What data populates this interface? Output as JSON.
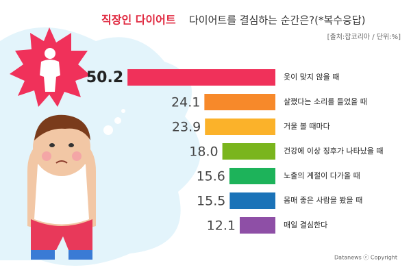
{
  "chart_data": {
    "type": "bar",
    "title_prefix": "직장인 다이어트",
    "title": "다이어트를 결심하는 순간은?(*복수응답)",
    "subtitle": "[출처:잡코리아 / 단위:%]",
    "footer": "Datanews ⓒ Copyright",
    "categories": [
      "옷이 맞지 않을 때",
      "살쪘다는 소리를 들었을 때",
      "거울 볼 때마다",
      "건강에 이상 징후가 나타났을 때",
      "노출의 계절이 다가올 때",
      "몸매 좋은 사람을 봤을 때",
      "매일 결심한다"
    ],
    "values": [
      50.2,
      24.1,
      23.9,
      18.0,
      15.6,
      15.5,
      12.1
    ],
    "value_labels": [
      "50.2",
      "24.1",
      "23.9",
      "18.0",
      "15.6",
      "15.5",
      "12.1"
    ],
    "colors": [
      "#f0315a",
      "#f7892a",
      "#fbb22a",
      "#7ab51d",
      "#1db35a",
      "#1b73b8",
      "#8e4fa6"
    ],
    "title_prefix_color": "#e0283f"
  }
}
